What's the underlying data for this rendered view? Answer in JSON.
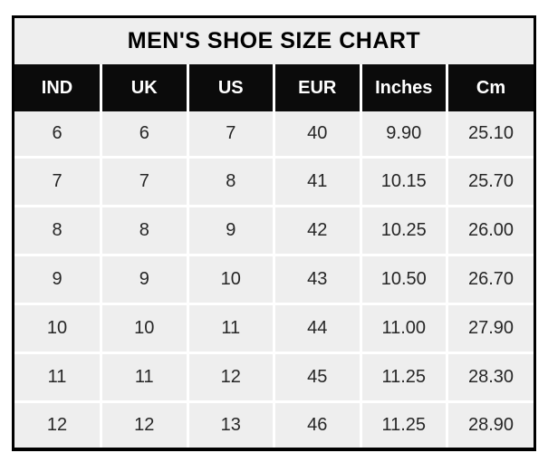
{
  "chart_data": {
    "type": "table",
    "title": "MEN'S SHOE SIZE CHART",
    "columns": [
      "IND",
      "UK",
      "US",
      "EUR",
      "Inches",
      "Cm"
    ],
    "rows": [
      [
        "6",
        "6",
        "7",
        "40",
        "9.90",
        "25.10"
      ],
      [
        "7",
        "7",
        "8",
        "41",
        "10.15",
        "25.70"
      ],
      [
        "8",
        "8",
        "9",
        "42",
        "10.25",
        "26.00"
      ],
      [
        "9",
        "9",
        "10",
        "43",
        "10.50",
        "26.70"
      ],
      [
        "10",
        "10",
        "11",
        "44",
        "11.00",
        "27.90"
      ],
      [
        "11",
        "11",
        "12",
        "45",
        "11.25",
        "28.30"
      ],
      [
        "12",
        "12",
        "13",
        "46",
        "11.25",
        "28.90"
      ]
    ]
  },
  "colors": {
    "page_bg": "#ffffff",
    "border": "#000000",
    "cell_bg": "#eeeeee",
    "grid_line": "#ffffff",
    "header_bg": "#0b0b0b",
    "header_text": "#ffffff",
    "title_text": "#000000",
    "body_text": "#262626"
  }
}
